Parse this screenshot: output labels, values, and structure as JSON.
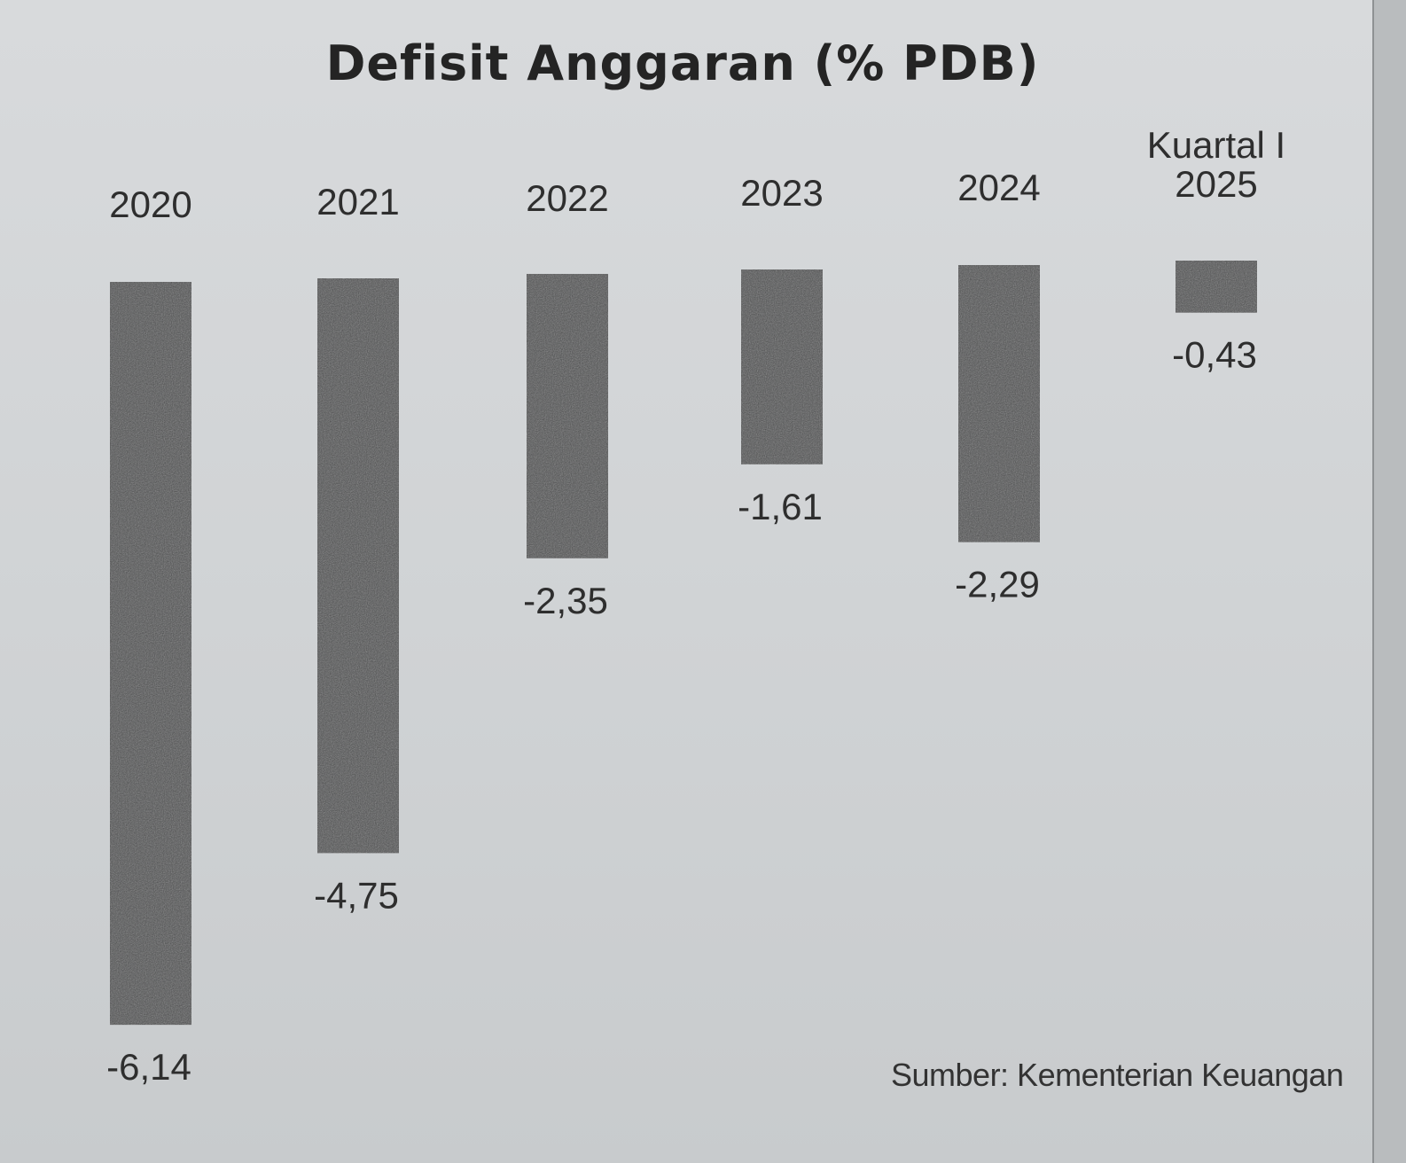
{
  "chart_data": {
    "type": "bar",
    "title": "Defisit Anggaran (% PDB)",
    "categories": [
      "2020",
      "2021",
      "2022",
      "2023",
      "2024",
      "Kuartal I 2025"
    ],
    "category_lines": [
      [
        "2020"
      ],
      [
        "2021"
      ],
      [
        "2022"
      ],
      [
        "2023"
      ],
      [
        "2024"
      ],
      [
        "Kuartal I",
        "2025"
      ]
    ],
    "values": [
      -6.14,
      -4.75,
      -2.35,
      -1.61,
      -2.29,
      -0.43
    ],
    "value_labels": [
      "-6,14",
      "-4,75",
      "-2,35",
      "-1,61",
      "-2,29",
      "-0,43"
    ],
    "xlabel": "",
    "ylabel": "",
    "ylim": [
      -6.14,
      0
    ],
    "axis_visible": false,
    "grid": false,
    "bar_color": "#4a4b4c",
    "category_labels_position": "top"
  },
  "source": "Sumber: Kementerian Keuangan"
}
